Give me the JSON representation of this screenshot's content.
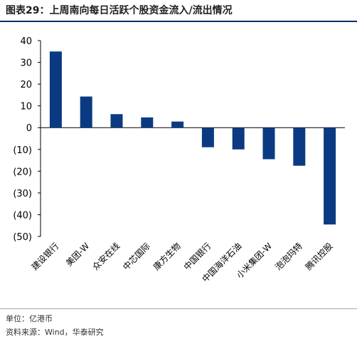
{
  "header": {
    "figure_label": "图表29：",
    "title": "上周南向每日活跃个股资金流入/流出情况"
  },
  "chart_data": {
    "type": "bar",
    "categories": [
      "建设银行",
      "美团-W",
      "众安在线",
      "中芯国际",
      "康方生物",
      "中国银行",
      "中国海洋石油",
      "小米集团-W",
      "泡泡玛特",
      "腾讯控股"
    ],
    "values": [
      35,
      14.3,
      6.2,
      4.7,
      2.8,
      -9,
      -10,
      -14.5,
      -17.5,
      -44.5
    ],
    "ylim": [
      -50,
      40
    ],
    "yticks": [
      40,
      30,
      20,
      10,
      0,
      -10,
      -20,
      -30,
      -40,
      -50
    ],
    "ytick_labels": [
      "40",
      "30",
      "20",
      "10",
      "0",
      "(10)",
      "(20)",
      "(30)",
      "(40)",
      "(50)"
    ],
    "bar_color": "#0b3a82",
    "grid": false
  },
  "footer": {
    "unit": "单位：亿港币",
    "source": "资料来源：Wind，华泰研究"
  },
  "colors": {
    "accent": "#0b2f6b",
    "bar": "#0b3a82"
  }
}
